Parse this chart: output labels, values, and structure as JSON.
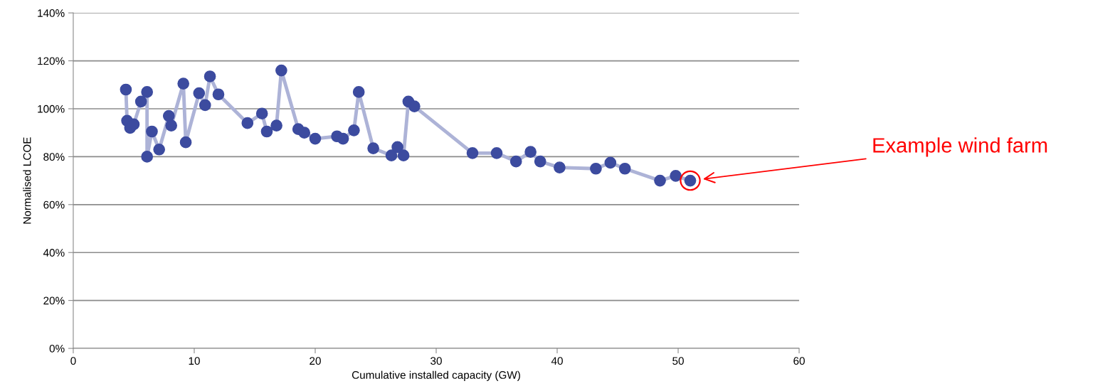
{
  "chart_data": {
    "type": "line",
    "xlabel": "Cumulative installed capacity (GW)",
    "ylabel": "Normalised LCOE",
    "series": [
      {
        "color": "#3c4b9f",
        "x": [
          4.35,
          4.45,
          4.7,
          5.0,
          5.6,
          6.1,
          6.1,
          6.5,
          7.1,
          7.9,
          8.1,
          9.1,
          9.3,
          10.4,
          10.9,
          11.3,
          12.0,
          14.4,
          15.6,
          16.0,
          16.8,
          17.2,
          18.6,
          19.1,
          20.0,
          21.8,
          22.3,
          23.2,
          23.6,
          24.8,
          26.3,
          26.8,
          27.3,
          27.7,
          28.2,
          33.0,
          35.0,
          36.6,
          37.8,
          38.6,
          40.2,
          43.2,
          44.4,
          45.6,
          48.5,
          49.8,
          51.0
        ],
        "values": [
          108,
          95,
          92,
          93.5,
          103,
          107,
          80,
          90.5,
          83,
          97,
          93,
          110.5,
          86,
          106.5,
          101.5,
          113.5,
          106,
          94,
          98,
          90.5,
          93,
          116,
          91.5,
          90,
          87.5,
          88.5,
          87.5,
          91,
          107,
          83.5,
          80.5,
          84,
          80.5,
          103,
          101,
          81.5,
          81.5,
          78,
          82,
          78,
          75.5,
          75,
          77.5,
          75,
          70,
          72,
          70
        ]
      }
    ],
    "marker": "circle",
    "line_style": "solid",
    "xlim": [
      0,
      60
    ],
    "xticks": [
      0,
      10,
      20,
      30,
      40,
      50,
      60
    ],
    "ylim": [
      0,
      140
    ],
    "yticks": [
      {
        "value": 0,
        "label": "0%"
      },
      {
        "value": 20,
        "label": "20%"
      },
      {
        "value": 40,
        "label": "40%"
      },
      {
        "value": 60,
        "label": "60%"
      },
      {
        "value": 80,
        "label": "80%"
      },
      {
        "value": 100,
        "label": "100%"
      },
      {
        "value": 120,
        "label": "120%"
      },
      {
        "value": 140,
        "label": "140%"
      }
    ],
    "grid": "y",
    "legend": false,
    "annotations": [
      "Example wind farm"
    ]
  }
}
